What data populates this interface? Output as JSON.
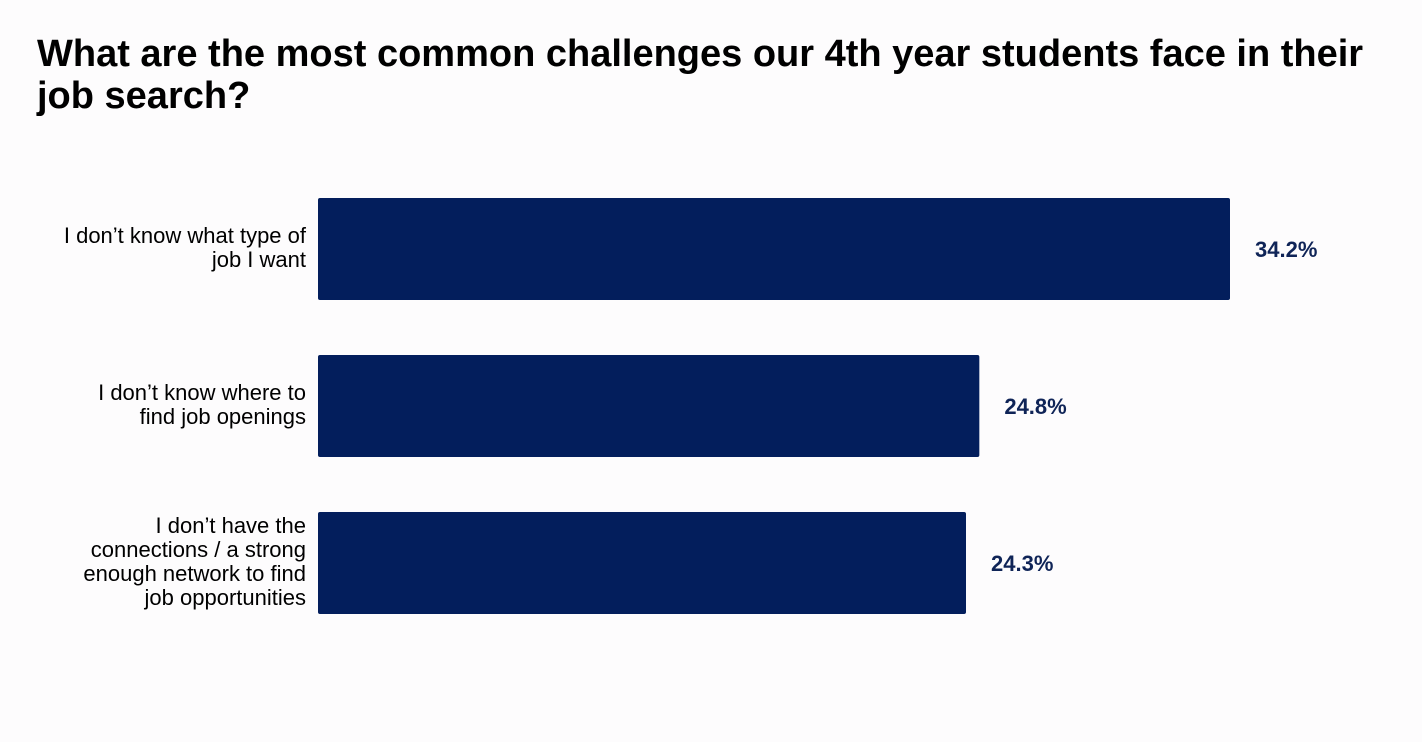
{
  "chart_data": {
    "type": "bar",
    "orientation": "horizontal",
    "title": "What are the most common challenges our 4th year students face in their job search?",
    "categories": [
      [
        "I don’t know what type of",
        "job I want"
      ],
      [
        "I don’t know where to",
        "find job openings"
      ],
      [
        "I don’t have the",
        "connections / a strong",
        "enough network to find",
        "job opportunities"
      ]
    ],
    "values": [
      34.2,
      24.8,
      24.3
    ],
    "value_labels": [
      "34.2%",
      "24.8%",
      "24.3%"
    ],
    "unit": "%",
    "xlim": [
      0,
      34.2
    ],
    "grid": false,
    "legend": "none",
    "colors": {
      "bar": "#031e5c",
      "value_label": "#0f2457",
      "background": "#fdfcfd"
    }
  }
}
